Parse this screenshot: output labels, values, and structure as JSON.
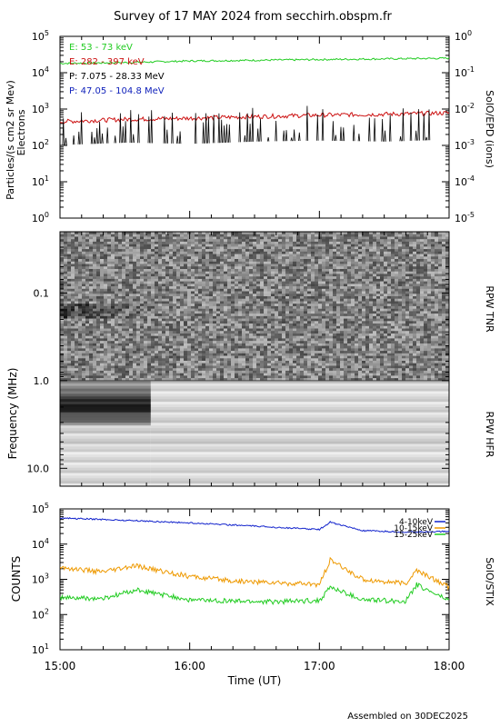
{
  "page": {
    "title": "Survey of 17 MAY 2024 from secchirh.obspm.fr",
    "footer": "Assembled on 30DEC2025"
  },
  "chart_data": [
    {
      "type": "line",
      "panel": "epd",
      "ylabel_left_1": "Particles/(s cm2 sr Mev)",
      "ylabel_left_2": "Electrons",
      "ylabel_right": "SolO/EPD (ions)",
      "yscale": "log",
      "ylim": [
        1,
        100000
      ],
      "ylim_right": [
        1e-05,
        1
      ],
      "yticks": [
        {
          "label": "10",
          "exp": "0",
          "value": 1
        },
        {
          "label": "10",
          "exp": "1",
          "value": 10
        },
        {
          "label": "10",
          "exp": "2",
          "value": 100
        },
        {
          "label": "10",
          "exp": "3",
          "value": 1000
        },
        {
          "label": "10",
          "exp": "4",
          "value": 10000
        },
        {
          "label": "10",
          "exp": "5",
          "value": 100000
        }
      ],
      "yticks_right": [
        {
          "label": "10",
          "exp": "-5",
          "value": 1e-05
        },
        {
          "label": "10",
          "exp": "-4",
          "value": 0.0001
        },
        {
          "label": "10",
          "exp": "-3",
          "value": 0.001
        },
        {
          "label": "10",
          "exp": "-2",
          "value": 0.01
        },
        {
          "label": "10",
          "exp": "-1",
          "value": 0.1
        },
        {
          "label": "10",
          "exp": "0",
          "value": 1
        }
      ],
      "series": [
        {
          "name": "E: 53 - 73 keV",
          "color": "#22cc22",
          "time": [
            "15:00",
            "15:30",
            "16:00",
            "16:30",
            "17:00",
            "17:30",
            "18:00"
          ],
          "values": [
            18000,
            19000,
            21000,
            22000,
            23000,
            24000,
            25000
          ]
        },
        {
          "name": "E: 282 - 397 keV",
          "color": "#cc1111",
          "time": [
            "15:00",
            "15:30",
            "16:00",
            "16:30",
            "17:00",
            "17:30",
            "18:00"
          ],
          "values": [
            450,
            520,
            560,
            620,
            680,
            720,
            780
          ]
        },
        {
          "name": "P: 7.075 - 28.33 MeV",
          "color": "#000000",
          "time": [
            "15:00",
            "15:30",
            "16:00",
            "16:30",
            "17:00",
            "17:30",
            "18:00"
          ],
          "values": [
            0.0012,
            0.0014,
            0.0013,
            0.0015,
            0.0016,
            0.0015,
            0.0017
          ]
        },
        {
          "name": "P: 47.05 - 104.8 MeV",
          "color": "#1122bb",
          "time": [],
          "values": []
        }
      ]
    },
    {
      "type": "heatmap",
      "panel": "rpw",
      "ylabel": "Frequency (MHz)",
      "yscale": "log",
      "ylim": [
        0.02,
        16
      ],
      "yticks": [
        {
          "label": "0.1",
          "value": 0.1
        },
        {
          "label": "1.0",
          "value": 1.0
        },
        {
          "label": "10.0",
          "value": 10.0
        }
      ],
      "ylabel_right_top": "RPW TNR",
      "ylabel_right_bottom": "RPW HFR",
      "tnr_range_mhz": [
        0.02,
        1.0
      ],
      "hfr_range_mhz": [
        1.0,
        16
      ],
      "features": [
        {
          "band_mhz": [
            0.13,
            0.2
          ],
          "time": [
            "15:00",
            "15:45"
          ],
          "level": "dark"
        },
        {
          "band_mhz": [
            1.5,
            2.5
          ],
          "time": [
            "15:00",
            "15:42"
          ],
          "level": "dark"
        }
      ]
    },
    {
      "type": "line",
      "panel": "stix",
      "ylabel": "COUNTS",
      "ylabel_right": "SolO/STIX",
      "yscale": "log",
      "ylim": [
        10,
        100000
      ],
      "yticks": [
        {
          "label": "10",
          "exp": "1",
          "value": 10
        },
        {
          "label": "10",
          "exp": "2",
          "value": 100
        },
        {
          "label": "10",
          "exp": "3",
          "value": 1000
        },
        {
          "label": "10",
          "exp": "4",
          "value": 10000
        },
        {
          "label": "10",
          "exp": "5",
          "value": 100000
        }
      ],
      "xlabel": "Time (UT)",
      "xticks": [
        "15:00",
        "16:00",
        "17:00",
        "18:00"
      ],
      "xlim": [
        "15:00",
        "18:00"
      ],
      "series": [
        {
          "name": "4-10keV",
          "color": "#1122cc",
          "time": [
            "15:00",
            "15:20",
            "15:40",
            "16:00",
            "16:20",
            "16:40",
            "17:00",
            "17:05",
            "17:20",
            "17:40",
            "18:00"
          ],
          "values": [
            55000,
            50000,
            45000,
            40000,
            35000,
            30000,
            26000,
            42000,
            24000,
            22000,
            23000
          ]
        },
        {
          "name": "10-15keV",
          "color": "#ee9900",
          "time": [
            "15:00",
            "15:20",
            "15:35",
            "16:00",
            "16:20",
            "16:40",
            "17:00",
            "17:05",
            "17:20",
            "17:40",
            "17:45",
            "18:00"
          ],
          "values": [
            2200,
            1600,
            2400,
            1200,
            900,
            800,
            700,
            3500,
            1000,
            750,
            1800,
            600
          ]
        },
        {
          "name": "15-25keV",
          "color": "#22cc22",
          "time": [
            "15:00",
            "15:20",
            "15:35",
            "16:00",
            "16:20",
            "16:40",
            "17:00",
            "17:05",
            "17:20",
            "17:40",
            "17:45",
            "18:00"
          ],
          "values": [
            300,
            280,
            500,
            260,
            240,
            230,
            250,
            600,
            260,
            240,
            700,
            250
          ]
        }
      ]
    }
  ]
}
